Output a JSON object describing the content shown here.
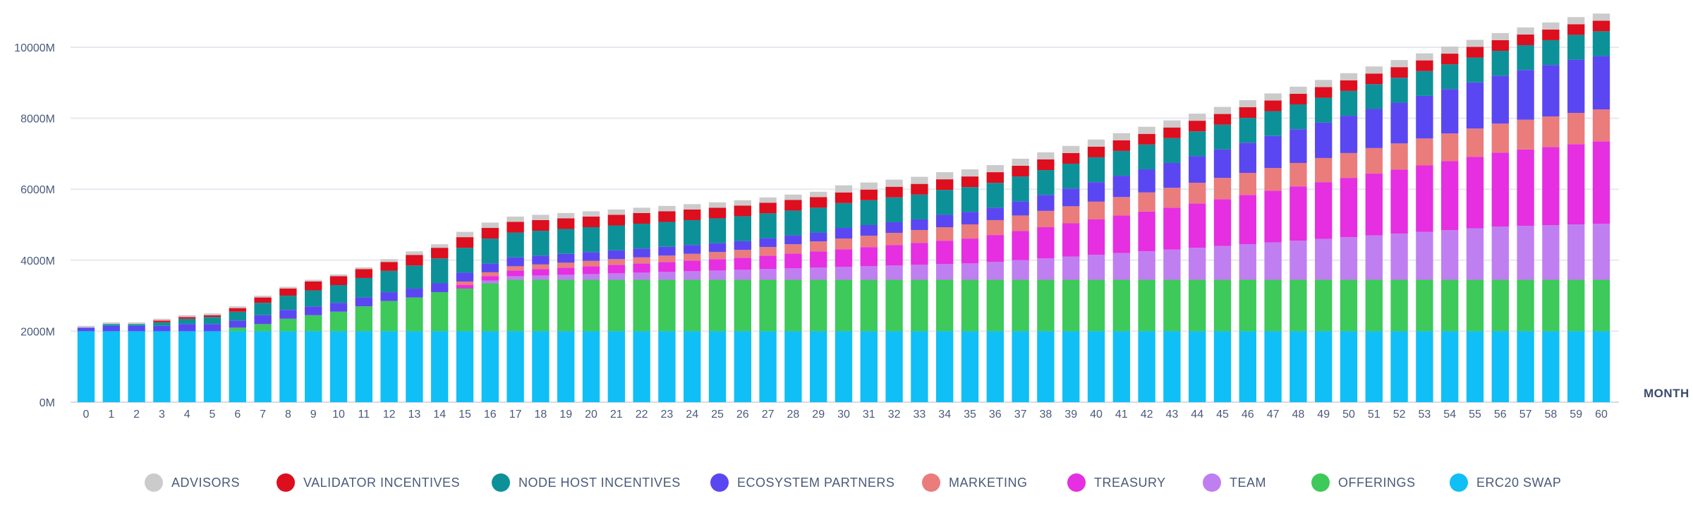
{
  "chart_data": {
    "type": "bar",
    "stacked": true,
    "xlabel": "MONTH",
    "ylabel": "",
    "ylim": [
      0,
      10000
    ],
    "yticks": [
      0,
      2000,
      4000,
      6000,
      8000,
      10000
    ],
    "ytick_labels": [
      "0M",
      "2000M",
      "4000M",
      "6000M",
      "8000M",
      "10000M"
    ],
    "grid": true,
    "legend_position": "bottom",
    "categories": [
      "0",
      "1",
      "2",
      "3",
      "4",
      "5",
      "6",
      "7",
      "8",
      "9",
      "10",
      "11",
      "12",
      "13",
      "14",
      "15",
      "16",
      "17",
      "18",
      "19",
      "20",
      "21",
      "22",
      "23",
      "24",
      "25",
      "26",
      "27",
      "28",
      "29",
      "30",
      "31",
      "32",
      "33",
      "34",
      "35",
      "36",
      "37",
      "38",
      "39",
      "40",
      "41",
      "42",
      "43",
      "44",
      "45",
      "46",
      "47",
      "48",
      "49",
      "50",
      "51",
      "52",
      "53",
      "54",
      "55",
      "56",
      "57",
      "58",
      "59",
      "60"
    ],
    "series": [
      {
        "name": "ERC20 SWAP",
        "color": "#10bff5",
        "values": [
          2000,
          2000,
          2000,
          2000,
          2000,
          2000,
          2000,
          2000,
          2000,
          2000,
          2000,
          2000,
          2000,
          2000,
          2000,
          2000,
          2000,
          2000,
          2000,
          2000,
          2000,
          2000,
          2000,
          2000,
          2000,
          2000,
          2000,
          2000,
          2000,
          2000,
          2000,
          2000,
          2000,
          2000,
          2000,
          2000,
          2000,
          2000,
          2000,
          2000,
          2000,
          2000,
          2000,
          2000,
          2000,
          2000,
          2000,
          2000,
          2000,
          2000,
          2000,
          2000,
          2000,
          2000,
          2000,
          2000,
          2000,
          2000,
          2000,
          2000,
          2000
        ]
      },
      {
        "name": "OFFERINGS",
        "color": "#3ec95b",
        "values": [
          0,
          0,
          0,
          0,
          0,
          0,
          100,
          200,
          350,
          450,
          550,
          700,
          850,
          950,
          1100,
          1200,
          1350,
          1450,
          1450,
          1450,
          1450,
          1450,
          1450,
          1450,
          1450,
          1450,
          1450,
          1450,
          1450,
          1450,
          1450,
          1450,
          1450,
          1450,
          1450,
          1450,
          1450,
          1450,
          1450,
          1450,
          1450,
          1450,
          1450,
          1450,
          1450,
          1450,
          1450,
          1450,
          1450,
          1450,
          1450,
          1450,
          1450,
          1450,
          1450,
          1450,
          1450,
          1450,
          1450,
          1450,
          1450
        ]
      },
      {
        "name": "TEAM",
        "color": "#c07ff0",
        "values": [
          0,
          0,
          0,
          0,
          0,
          0,
          0,
          0,
          0,
          0,
          0,
          0,
          0,
          0,
          0,
          0,
          80,
          100,
          120,
          140,
          160,
          180,
          200,
          220,
          240,
          260,
          280,
          300,
          320,
          340,
          360,
          380,
          400,
          420,
          440,
          460,
          500,
          550,
          600,
          650,
          700,
          750,
          800,
          850,
          900,
          950,
          1000,
          1050,
          1100,
          1150,
          1200,
          1250,
          1300,
          1350,
          1400,
          1450,
          1500,
          1520,
          1540,
          1560,
          1580
        ]
      },
      {
        "name": "TREASURY",
        "color": "#e52fe0",
        "values": [
          0,
          0,
          0,
          0,
          0,
          0,
          0,
          0,
          0,
          0,
          0,
          0,
          0,
          0,
          0,
          100,
          120,
          160,
          180,
          200,
          220,
          240,
          260,
          280,
          300,
          320,
          340,
          380,
          420,
          460,
          500,
          540,
          580,
          620,
          660,
          700,
          760,
          820,
          880,
          940,
          1000,
          1060,
          1120,
          1180,
          1250,
          1320,
          1390,
          1460,
          1530,
          1600,
          1670,
          1740,
          1800,
          1870,
          1940,
          2010,
          2080,
          2150,
          2200,
          2260,
          2320
        ]
      },
      {
        "name": "MARKETING",
        "color": "#ea7c7c",
        "values": [
          0,
          0,
          0,
          0,
          0,
          0,
          0,
          0,
          0,
          0,
          0,
          0,
          0,
          0,
          0,
          100,
          110,
          120,
          130,
          140,
          150,
          160,
          170,
          180,
          190,
          200,
          220,
          240,
          260,
          280,
          300,
          320,
          340,
          360,
          380,
          400,
          420,
          440,
          460,
          480,
          500,
          520,
          540,
          560,
          580,
          600,
          620,
          640,
          660,
          680,
          700,
          720,
          740,
          760,
          780,
          800,
          820,
          840,
          860,
          880,
          900
        ]
      },
      {
        "name": "ECOSYSTEM PARTNERS",
        "color": "#5b47f1",
        "values": [
          100,
          150,
          150,
          150,
          200,
          200,
          200,
          250,
          250,
          250,
          250,
          250,
          250,
          250,
          250,
          250,
          250,
          250,
          250,
          250,
          250,
          250,
          250,
          250,
          250,
          250,
          250,
          250,
          250,
          250,
          300,
          300,
          300,
          300,
          350,
          350,
          350,
          400,
          450,
          500,
          550,
          600,
          650,
          700,
          750,
          800,
          850,
          900,
          950,
          1000,
          1050,
          1100,
          1150,
          1200,
          1250,
          1300,
          1350,
          1400,
          1450,
          1500,
          1500
        ]
      },
      {
        "name": "NODE HOST INCENTIVES",
        "color": "#0d9199",
        "values": [
          0,
          50,
          50,
          100,
          150,
          200,
          250,
          350,
          400,
          450,
          500,
          550,
          600,
          650,
          700,
          700,
          700,
          700,
          700,
          700,
          700,
          700,
          700,
          700,
          700,
          700,
          700,
          700,
          700,
          700,
          700,
          700,
          700,
          700,
          700,
          700,
          700,
          700,
          700,
          700,
          700,
          700,
          700,
          700,
          700,
          700,
          700,
          700,
          700,
          700,
          700,
          700,
          700,
          700,
          700,
          700,
          700,
          700,
          700,
          700,
          700
        ]
      },
      {
        "name": "VALIDATOR INCENTIVES",
        "color": "#dd0e1e",
        "values": [
          0,
          0,
          0,
          50,
          50,
          50,
          100,
          150,
          200,
          250,
          250,
          250,
          250,
          300,
          300,
          300,
          300,
          300,
          300,
          300,
          300,
          300,
          300,
          300,
          300,
          300,
          300,
          300,
          300,
          300,
          300,
          300,
          300,
          300,
          300,
          300,
          300,
          300,
          300,
          300,
          300,
          300,
          300,
          300,
          300,
          300,
          300,
          300,
          300,
          300,
          300,
          300,
          300,
          300,
          300,
          300,
          300,
          300,
          300,
          300,
          300
        ]
      },
      {
        "name": "ADVISORS",
        "color": "#cbcbcb",
        "values": [
          50,
          50,
          50,
          50,
          50,
          50,
          50,
          50,
          50,
          50,
          50,
          50,
          80,
          100,
          100,
          150,
          150,
          150,
          150,
          150,
          150,
          150,
          150,
          150,
          150,
          150,
          150,
          150,
          150,
          150,
          200,
          200,
          200,
          200,
          200,
          200,
          200,
          200,
          200,
          200,
          200,
          200,
          200,
          200,
          200,
          200,
          200,
          200,
          200,
          200,
          200,
          200,
          200,
          200,
          200,
          200,
          200,
          200,
          200,
          200,
          200
        ]
      }
    ],
    "legend_order": [
      "ADVISORS",
      "VALIDATOR INCENTIVES",
      "NODE HOST INCENTIVES",
      "ECOSYSTEM PARTNERS",
      "MARKETING",
      "TREASURY",
      "TEAM",
      "OFFERINGS",
      "ERC20 SWAP"
    ]
  }
}
